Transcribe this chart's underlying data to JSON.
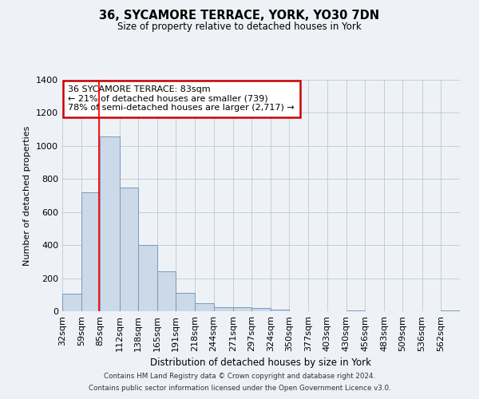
{
  "title": "36, SYCAMORE TERRACE, YORK, YO30 7DN",
  "subtitle": "Size of property relative to detached houses in York",
  "xlabel": "Distribution of detached houses by size in York",
  "ylabel": "Number of detached properties",
  "bar_color": "#ccd9e8",
  "bar_edge_color": "#7799bb",
  "red_line_x": 83,
  "categories": [
    "32sqm",
    "59sqm",
    "85sqm",
    "112sqm",
    "138sqm",
    "165sqm",
    "191sqm",
    "218sqm",
    "244sqm",
    "271sqm",
    "297sqm",
    "324sqm",
    "350sqm",
    "377sqm",
    "403sqm",
    "430sqm",
    "456sqm",
    "483sqm",
    "509sqm",
    "536sqm",
    "562sqm"
  ],
  "values": [
    107,
    720,
    1057,
    748,
    400,
    243,
    110,
    47,
    25,
    22,
    20,
    10,
    0,
    0,
    0,
    7,
    0,
    0,
    0,
    0,
    3
  ],
  "bin_edges": [
    32,
    59,
    85,
    112,
    138,
    165,
    191,
    218,
    244,
    271,
    297,
    324,
    350,
    377,
    403,
    430,
    456,
    483,
    509,
    536,
    562,
    589
  ],
  "ylim": [
    0,
    1400
  ],
  "yticks": [
    0,
    200,
    400,
    600,
    800,
    1000,
    1200,
    1400
  ],
  "annotation_title": "36 SYCAMORE TERRACE: 83sqm",
  "annotation_line1": "← 21% of detached houses are smaller (739)",
  "annotation_line2": "78% of semi-detached houses are larger (2,717) →",
  "annotation_box_color": "#ffffff",
  "annotation_box_edge_color": "#cc0000",
  "footnote1": "Contains HM Land Registry data © Crown copyright and database right 2024.",
  "footnote2": "Contains public sector information licensed under the Open Government Licence v3.0.",
  "background_color": "#eef2f7",
  "grid_color": "#b0c0d0"
}
